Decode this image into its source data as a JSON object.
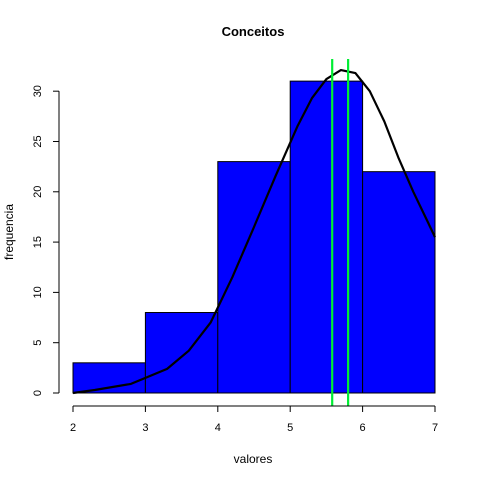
{
  "chart_data": {
    "type": "bar",
    "title": "Conceitos",
    "xlabel": "valores",
    "ylabel": "frequencia",
    "xlim": [
      2,
      7
    ],
    "ylim": [
      0,
      33
    ],
    "x_ticks": [
      2,
      3,
      4,
      5,
      6,
      7
    ],
    "y_ticks": [
      0,
      5,
      10,
      15,
      20,
      25,
      30
    ],
    "bins": [
      {
        "start": 2,
        "end": 3,
        "value": 3
      },
      {
        "start": 3,
        "end": 4,
        "value": 8
      },
      {
        "start": 4,
        "end": 5,
        "value": 23
      },
      {
        "start": 5,
        "end": 6,
        "value": 31
      },
      {
        "start": 6,
        "end": 7,
        "value": 22
      }
    ],
    "bar_color": "#0000FF",
    "curve": {
      "color": "#000000",
      "points": [
        [
          2.0,
          0.0
        ],
        [
          2.3,
          0.3
        ],
        [
          2.8,
          0.9
        ],
        [
          3.3,
          2.4
        ],
        [
          3.6,
          4.2
        ],
        [
          3.9,
          7.0
        ],
        [
          4.2,
          11.5
        ],
        [
          4.5,
          16.5
        ],
        [
          4.8,
          21.6
        ],
        [
          5.1,
          26.5
        ],
        [
          5.3,
          29.3
        ],
        [
          5.5,
          31.2
        ],
        [
          5.7,
          32.1
        ],
        [
          5.9,
          31.8
        ],
        [
          6.1,
          30.0
        ],
        [
          6.3,
          27.0
        ],
        [
          6.5,
          23.3
        ],
        [
          6.7,
          20.0
        ],
        [
          6.9,
          17.0
        ],
        [
          7.0,
          15.5
        ]
      ]
    },
    "vlines": {
      "color": "#00EE33",
      "x": [
        5.58,
        5.8
      ]
    }
  }
}
